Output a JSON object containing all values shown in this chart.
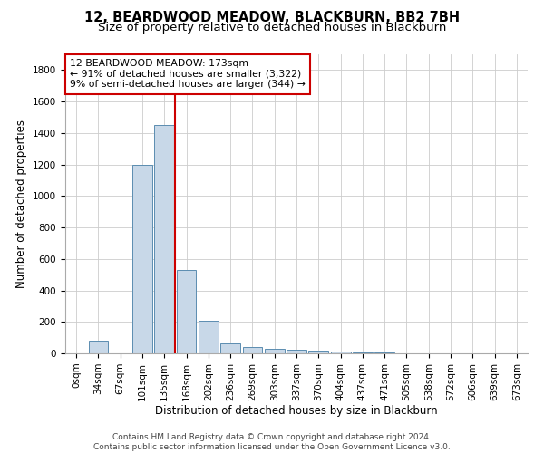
{
  "title": "12, BEARDWOOD MEADOW, BLACKBURN, BB2 7BH",
  "subtitle": "Size of property relative to detached houses in Blackburn",
  "xlabel": "Distribution of detached houses by size in Blackburn",
  "ylabel": "Number of detached properties",
  "footer_line1": "Contains HM Land Registry data © Crown copyright and database right 2024.",
  "footer_line2": "Contains public sector information licensed under the Open Government Licence v3.0.",
  "bin_labels": [
    "0sqm",
    "34sqm",
    "67sqm",
    "101sqm",
    "135sqm",
    "168sqm",
    "202sqm",
    "236sqm",
    "269sqm",
    "303sqm",
    "337sqm",
    "370sqm",
    "404sqm",
    "437sqm",
    "471sqm",
    "505sqm",
    "538sqm",
    "572sqm",
    "606sqm",
    "639sqm",
    "673sqm"
  ],
  "bar_heights": [
    0,
    80,
    0,
    1200,
    1450,
    530,
    205,
    65,
    40,
    30,
    25,
    18,
    10,
    5,
    3,
    2,
    1,
    1,
    0,
    0,
    0
  ],
  "bar_color": "#c8d8e8",
  "bar_edge_color": "#5b8db0",
  "vline_x_idx": 5,
  "vline_color": "#cc0000",
  "annotation_text": "12 BEARDWOOD MEADOW: 173sqm\n← 91% of detached houses are smaller (3,322)\n9% of semi-detached houses are larger (344) →",
  "annotation_box_color": "#ffffff",
  "annotation_box_edge_color": "#cc0000",
  "ylim": [
    0,
    1900
  ],
  "yticks": [
    0,
    200,
    400,
    600,
    800,
    1000,
    1200,
    1400,
    1600,
    1800
  ],
  "background_color": "#ffffff",
  "grid_color": "#cccccc",
  "title_fontsize": 10.5,
  "subtitle_fontsize": 9.5,
  "axis_label_fontsize": 8.5,
  "tick_fontsize": 7.5,
  "annotation_fontsize": 7.8,
  "footer_fontsize": 6.5
}
